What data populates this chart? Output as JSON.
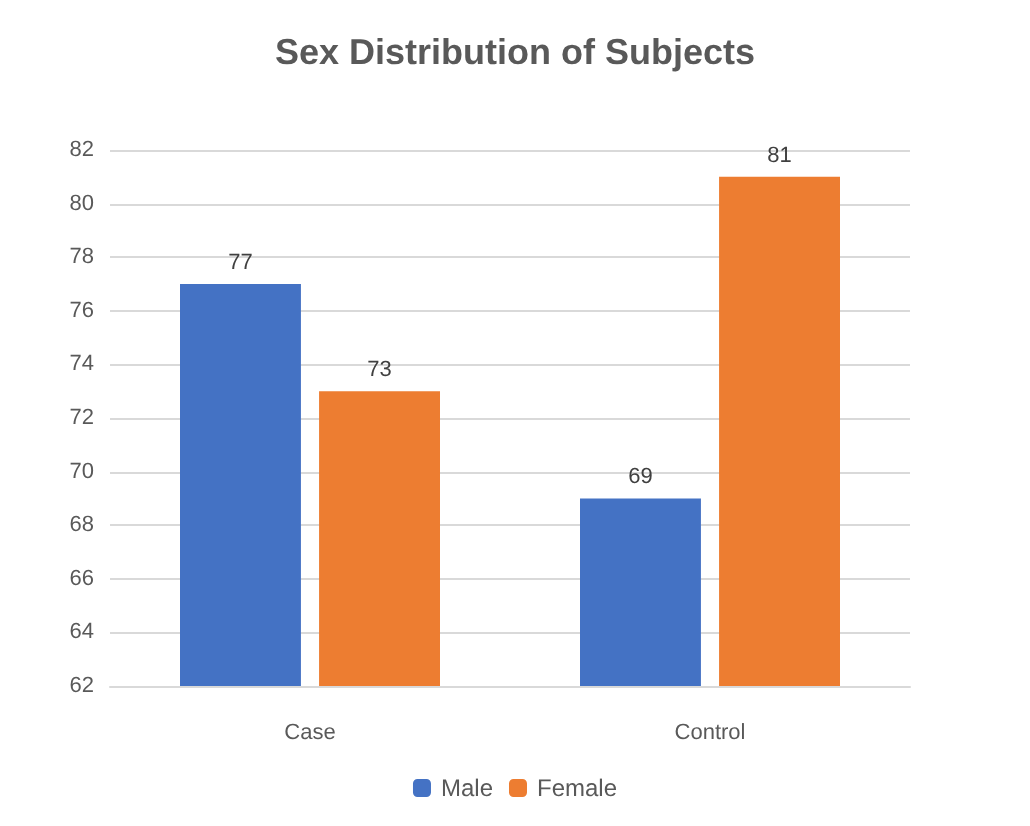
{
  "chart_data": {
    "type": "bar",
    "title": "Sex Distribution of Subjects",
    "categories": [
      "Case",
      "Control"
    ],
    "series": [
      {
        "name": "Male",
        "color": "#4472c4",
        "values": [
          77,
          69
        ]
      },
      {
        "name": "Female",
        "color": "#ed7d31",
        "values": [
          73,
          81
        ]
      }
    ],
    "ylim": [
      62,
      82
    ],
    "yticks": [
      62,
      64,
      66,
      68,
      70,
      72,
      74,
      76,
      78,
      80,
      82
    ],
    "grid": "y",
    "legend": "bottom",
    "data_labels": true
  }
}
